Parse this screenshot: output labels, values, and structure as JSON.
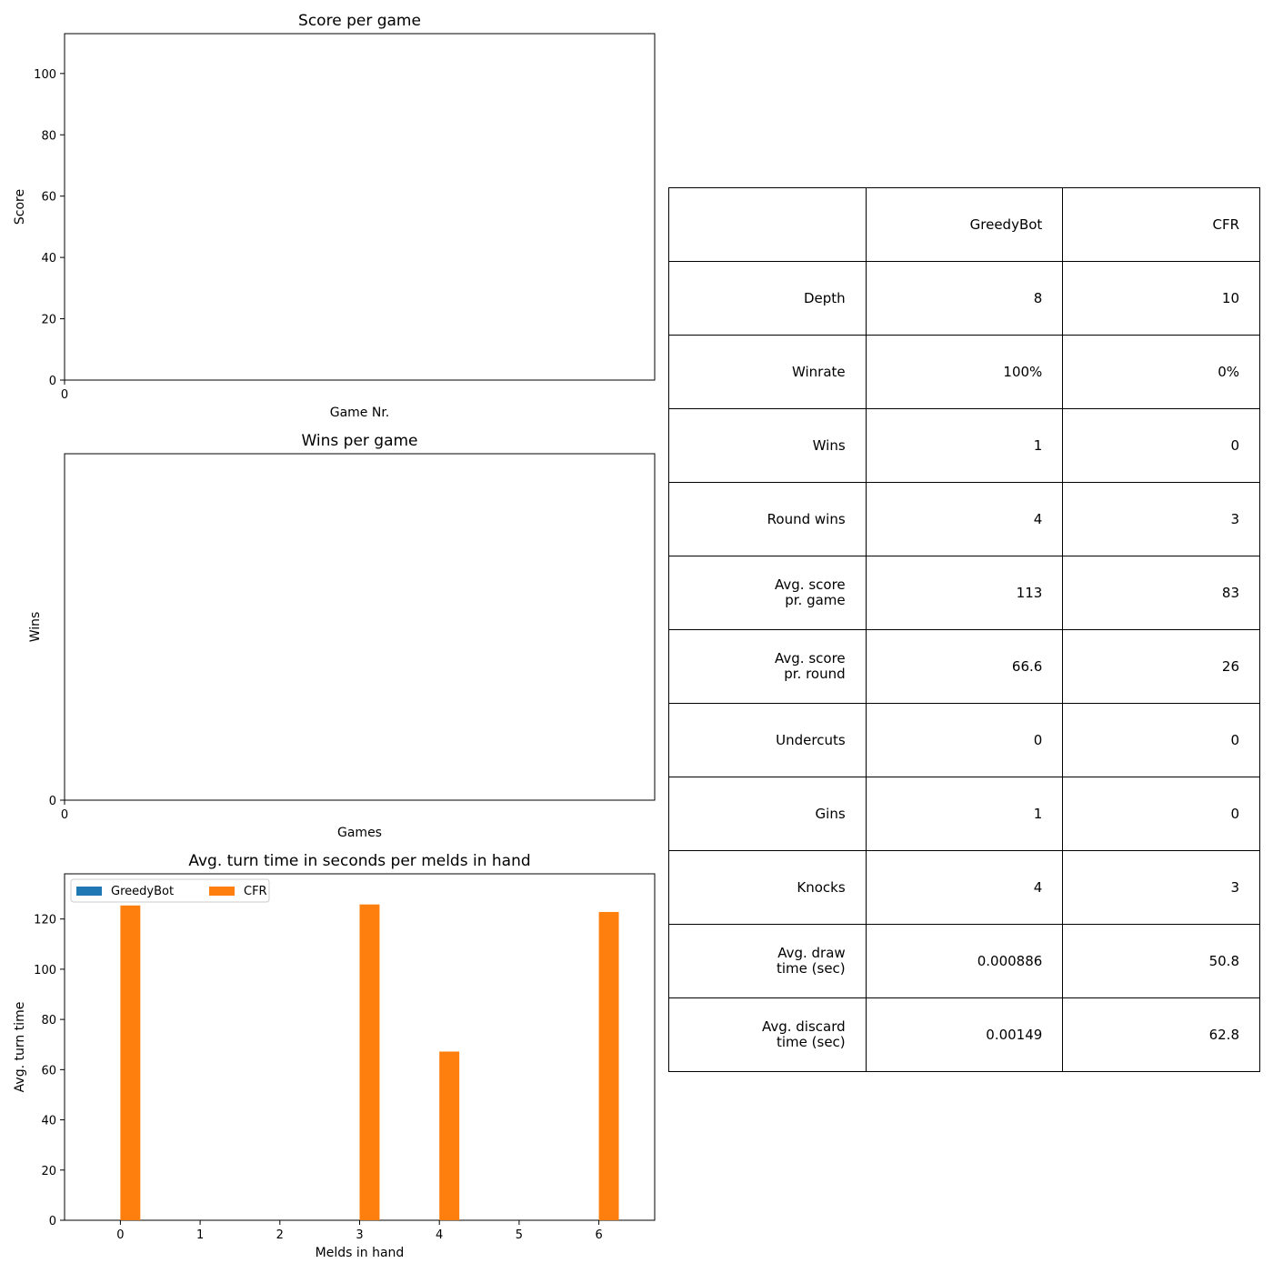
{
  "chart_data": [
    {
      "type": "line",
      "title": "Score per game",
      "xlabel": "Game Nr.",
      "ylabel": "Score",
      "xticks": [
        "0"
      ],
      "yticks": [
        "0",
        "20",
        "40",
        "60",
        "80",
        "100"
      ],
      "ylim": [
        0,
        113
      ],
      "series": [],
      "grid": false
    },
    {
      "type": "line",
      "title": "Wins per game",
      "xlabel": "Games",
      "ylabel": "Wins",
      "xticks": [
        "0"
      ],
      "yticks": [
        "0"
      ],
      "series": [],
      "grid": false
    },
    {
      "type": "bar",
      "title": "Avg. turn time in seconds per melds in hand",
      "xlabel": "Melds in hand",
      "ylabel": "Avg. turn time",
      "categories": [
        "0",
        "1",
        "2",
        "3",
        "4",
        "5",
        "6"
      ],
      "yticks": [
        "0",
        "20",
        "40",
        "60",
        "80",
        "100",
        "120"
      ],
      "ylim": [
        0,
        138
      ],
      "legend_position": "upper-left",
      "series": [
        {
          "name": "GreedyBot",
          "color": "#1f77b4",
          "values": [
            0,
            0,
            0,
            0,
            0,
            0,
            0
          ]
        },
        {
          "name": "CFR",
          "color": "#ff7f0e",
          "values": [
            125.4,
            0,
            0,
            125.8,
            67.2,
            0,
            122.8
          ]
        }
      ],
      "grid": false
    }
  ],
  "table": {
    "header": [
      "",
      "GreedyBot",
      "CFR"
    ],
    "rows": [
      [
        "Depth",
        "8",
        "10"
      ],
      [
        "Winrate",
        "100%",
        "0%"
      ],
      [
        "Wins",
        "1",
        "0"
      ],
      [
        "Round wins",
        "4",
        "3"
      ],
      [
        "Avg. score\npr. game",
        "113",
        "83"
      ],
      [
        "Avg. score\npr. round",
        "66.6",
        "26"
      ],
      [
        "Undercuts",
        "0",
        "0"
      ],
      [
        "Gins",
        "1",
        "0"
      ],
      [
        "Knocks",
        "4",
        "3"
      ],
      [
        "Avg. draw\ntime (sec)",
        "0.000886",
        "50.8"
      ],
      [
        "Avg. discard\ntime (sec)",
        "0.00149",
        "62.8"
      ]
    ]
  }
}
